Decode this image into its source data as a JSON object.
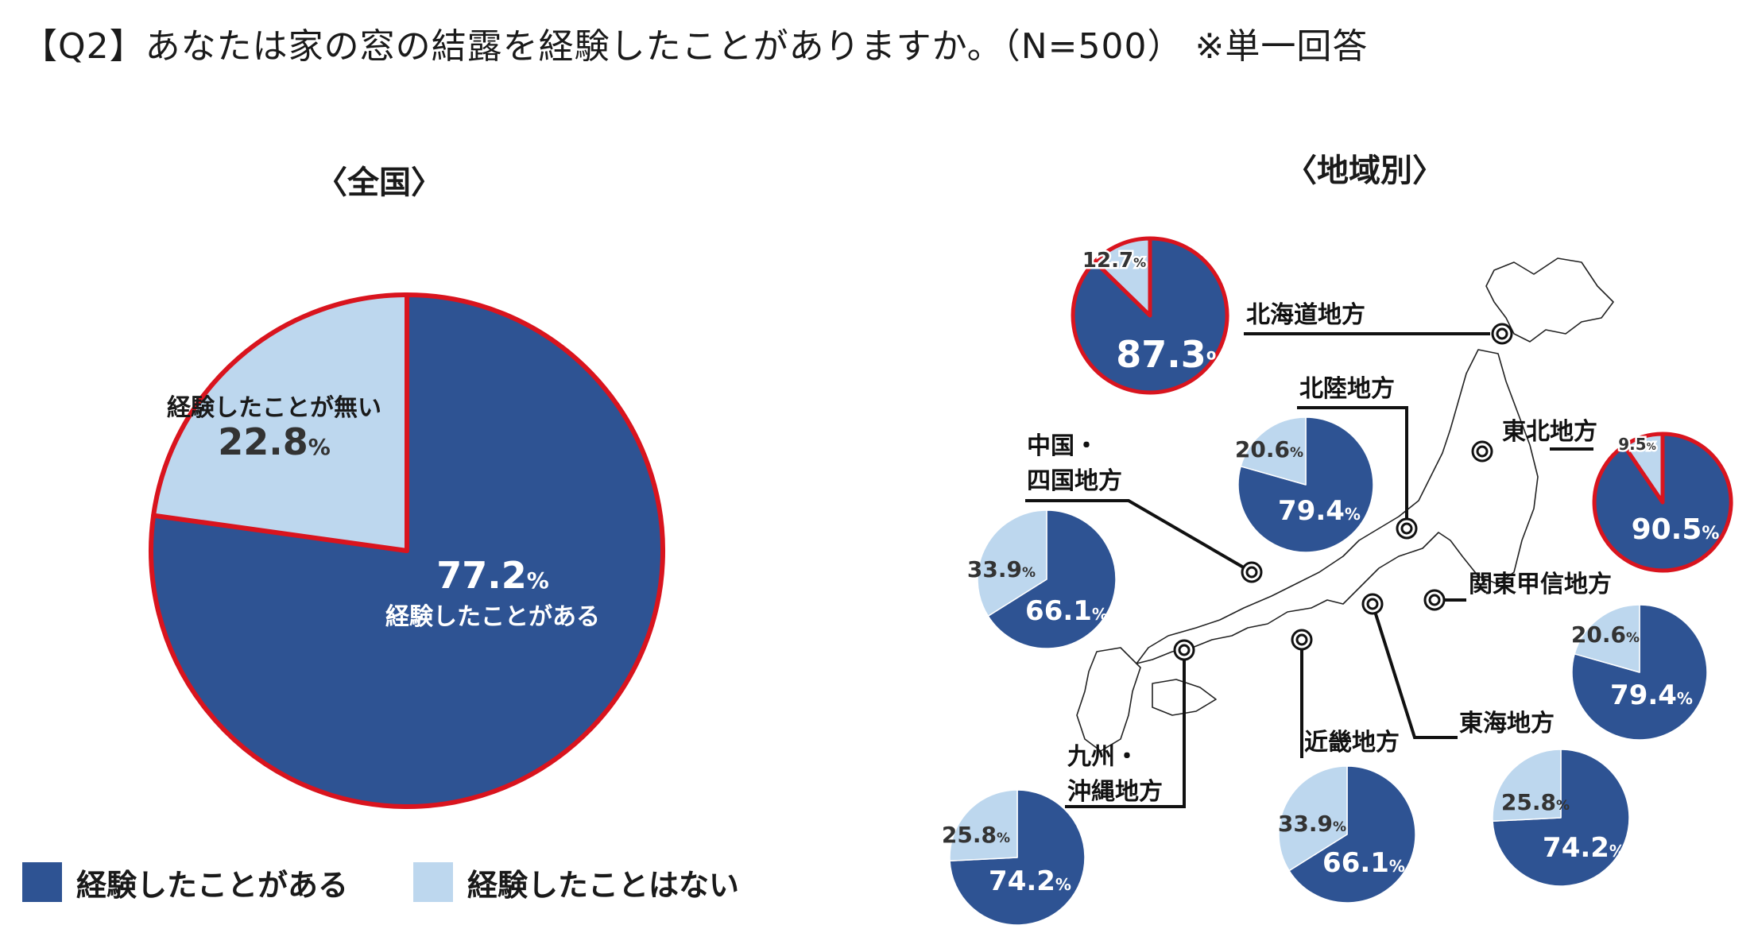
{
  "page": {
    "title": "【Q2】あなたは家の窓の結露を経験したことがありますか。（N=500） ※単一回答",
    "national_title": "〈全国〉",
    "regional_title": "〈地域別〉"
  },
  "colors": {
    "yes": "#2e5393",
    "no": "#bdd7ee",
    "highlight_border": "#d9141e",
    "leader_line": "#111111",
    "map_outline": "#222222"
  },
  "legend": [
    {
      "label": "経験したことがある",
      "color": "#2e5393"
    },
    {
      "label": "経験したことはない",
      "color": "#bdd7ee"
    }
  ],
  "chart_data": [
    {
      "type": "pie",
      "name": "全国",
      "highlighted": true,
      "slices": [
        {
          "label": "経験したことがある",
          "value": 77.2,
          "display": "77.2",
          "unit": "%"
        },
        {
          "label": "経験したことが無い",
          "value": 22.8,
          "display": "22.8",
          "unit": "%"
        }
      ]
    },
    {
      "type": "pie",
      "name": "北海道地方",
      "highlighted": true,
      "slices": [
        {
          "label": "経験したことがある",
          "value": 87.3,
          "display": "87.3",
          "unit": "%"
        },
        {
          "label": "経験したことはない",
          "value": 12.7,
          "display": "12.7",
          "unit": "%"
        }
      ]
    },
    {
      "type": "pie",
      "name": "北陸地方",
      "highlighted": false,
      "slices": [
        {
          "label": "経験したことがある",
          "value": 79.4,
          "display": "79.4",
          "unit": "%"
        },
        {
          "label": "経験したことはない",
          "value": 20.6,
          "display": "20.6",
          "unit": "%"
        }
      ]
    },
    {
      "type": "pie",
      "name": "東北地方",
      "highlighted": true,
      "slices": [
        {
          "label": "経験したことがある",
          "value": 90.5,
          "display": "90.5",
          "unit": "%"
        },
        {
          "label": "経験したことはない",
          "value": 9.5,
          "display": "9.5",
          "unit": "%"
        }
      ]
    },
    {
      "type": "pie",
      "name": "中国・四国地方",
      "label_lines": [
        "中国・",
        "四国地方"
      ],
      "highlighted": false,
      "slices": [
        {
          "label": "経験したことがある",
          "value": 66.1,
          "display": "66.1",
          "unit": "%"
        },
        {
          "label": "経験したことはない",
          "value": 33.9,
          "display": "33.9",
          "unit": "%"
        }
      ]
    },
    {
      "type": "pie",
      "name": "関東甲信地方",
      "highlighted": false,
      "slices": [
        {
          "label": "経験したことがある",
          "value": 79.4,
          "display": "79.4",
          "unit": "%"
        },
        {
          "label": "経験したことはない",
          "value": 20.6,
          "display": "20.6",
          "unit": "%"
        }
      ]
    },
    {
      "type": "pie",
      "name": "東海地方",
      "highlighted": false,
      "slices": [
        {
          "label": "経験したことがある",
          "value": 74.2,
          "display": "74.2",
          "unit": "%"
        },
        {
          "label": "経験したことはない",
          "value": 25.8,
          "display": "25.8",
          "unit": "%"
        }
      ]
    },
    {
      "type": "pie",
      "name": "近畿地方",
      "highlighted": false,
      "slices": [
        {
          "label": "経験したことがある",
          "value": 66.1,
          "display": "66.1",
          "unit": "%"
        },
        {
          "label": "経験したことはない",
          "value": 33.9,
          "display": "33.9",
          "unit": "%"
        }
      ]
    },
    {
      "type": "pie",
      "name": "九州・沖縄地方",
      "label_lines": [
        "九州・",
        "沖縄地方"
      ],
      "highlighted": false,
      "slices": [
        {
          "label": "経験したことがある",
          "value": 74.2,
          "display": "74.2",
          "unit": "%"
        },
        {
          "label": "経験したことはない",
          "value": 25.8,
          "display": "25.8",
          "unit": "%"
        }
      ]
    }
  ]
}
